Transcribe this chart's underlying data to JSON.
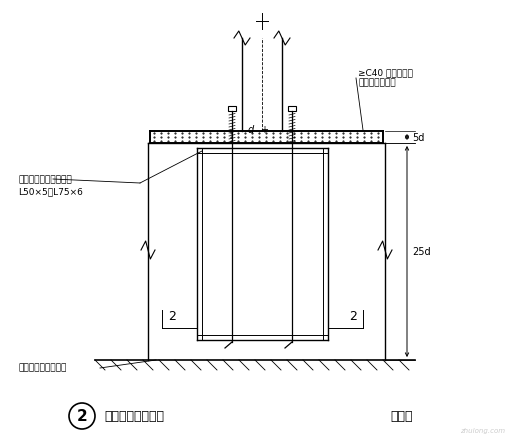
{
  "bg_color": "#ffffff",
  "line_color": "#000000",
  "title": "柱脚锚栓固定支架",
  "title_num": "2",
  "subtitle": "（二）",
  "annotation1": "≥C40 无收缩砂石",
  "annotation2": "混凝土或细砂浆",
  "annotation3": "锚栓固定角钢，通常用",
  "annotation4": "L50×5～L75×6",
  "annotation5": "锚栓固定架设置标高",
  "label_d": "d",
  "label_5d": "5d",
  "label_25d": "25d",
  "label_2a": "2",
  "label_2b": "2"
}
